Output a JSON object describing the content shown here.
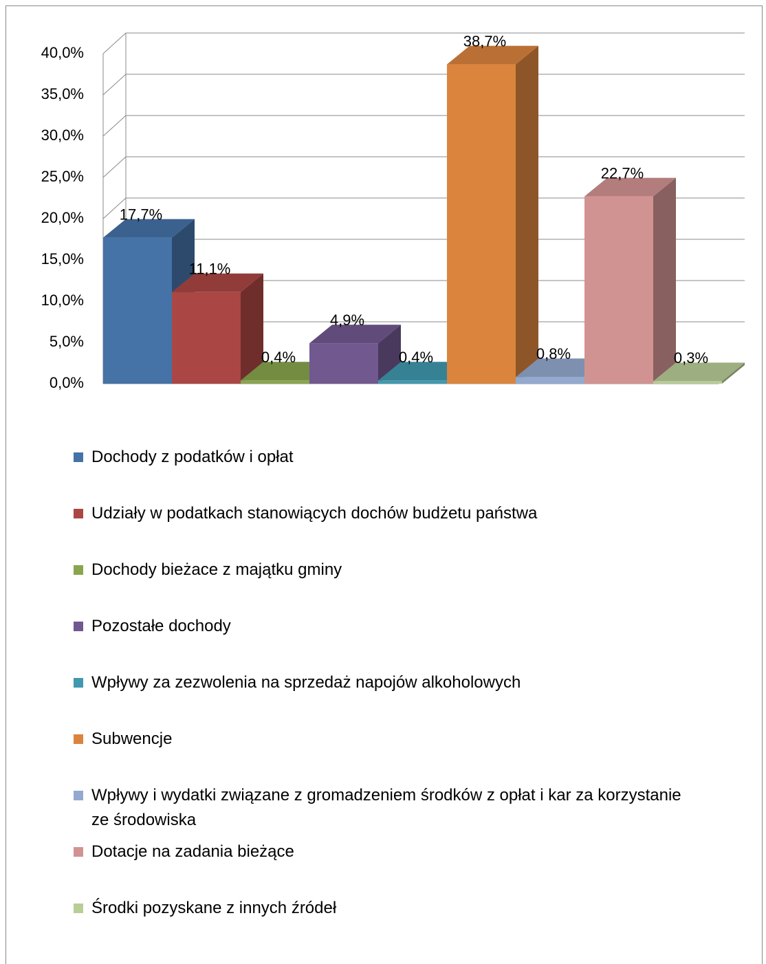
{
  "chart_data": {
    "type": "bar3d",
    "categories": [
      "Dochody z podatków i opłat",
      "Udziały w podatkach stanowiących dochów budżetu państwa",
      "Dochody bieżace z majątku gminy",
      "Pozostałe dochody",
      "Wpływy za zezwolenia na sprzedaż napojów alkoholowych",
      "Subwencje",
      "Wpływy i wydatki związane z gromadzeniem środków z opłat i kar za korzystanie ze środowiska",
      "Dotacje na zadania bieżące",
      "Środki pozyskane z innych źródeł"
    ],
    "values": [
      17.7,
      11.1,
      0.4,
      4.9,
      0.4,
      38.7,
      0.8,
      22.7,
      0.3
    ],
    "value_labels": [
      "17,7%",
      "11,1%",
      "0,4%",
      "4,9%",
      "0,4%",
      "38,7%",
      "0,8%",
      "22,7%",
      "0,3%"
    ],
    "colors": [
      "#4572a7",
      "#aa4643",
      "#89a54e",
      "#71588f",
      "#4198af",
      "#db843d",
      "#93a9cf",
      "#d19392",
      "#b9cd96"
    ],
    "ylim": [
      0,
      40
    ],
    "yticks": [
      {
        "value": 0,
        "label": "0,0%"
      },
      {
        "value": 5,
        "label": "5,0%"
      },
      {
        "value": 10,
        "label": "10,0%"
      },
      {
        "value": 15,
        "label": "15,0%"
      },
      {
        "value": 20,
        "label": "20,0%"
      },
      {
        "value": 25,
        "label": "25,0%"
      },
      {
        "value": 30,
        "label": "30,0%"
      },
      {
        "value": 35,
        "label": "35,0%"
      },
      {
        "value": 40,
        "label": "40,0%"
      }
    ],
    "grid": true,
    "legend": "bottom"
  }
}
